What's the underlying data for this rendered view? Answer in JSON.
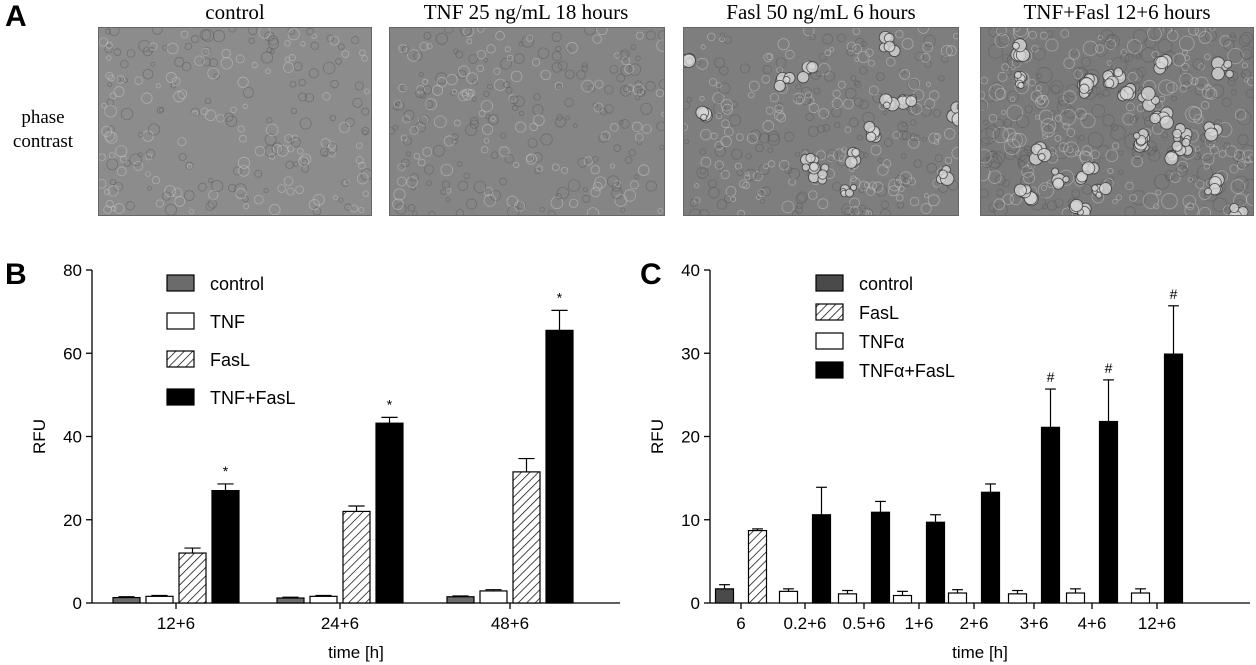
{
  "panel_letters": [
    "A",
    "B",
    "C"
  ],
  "panel_a": {
    "row_label": "phase\ncontrast",
    "images": [
      {
        "title": "control",
        "tone": "#8c8c8c",
        "cell_density": 0.35
      },
      {
        "title": "TNF 25 ng/mL 18 hours",
        "tone": "#858585",
        "cell_density": 0.45
      },
      {
        "title": "Fasl 50 ng/mL 6 hours",
        "tone": "#7e7e7e",
        "cell_density": 0.55
      },
      {
        "title": "TNF+Fasl 12+6 hours",
        "tone": "#7a7a7a",
        "cell_density": 0.85
      }
    ]
  },
  "chart_data": [
    {
      "panel": "B",
      "type": "bar",
      "xlabel": "time [h]",
      "ylabel": "RFU",
      "ylim": [
        0,
        80
      ],
      "yticks": [
        0,
        20,
        40,
        60,
        80
      ],
      "categories": [
        "12+6",
        "24+6",
        "48+6"
      ],
      "legend_position": "top-left",
      "series": [
        {
          "name": "control",
          "fill": "gray",
          "values": [
            1.3,
            1.2,
            1.5
          ],
          "errors": [
            0.2,
            0.2,
            0.2
          ]
        },
        {
          "name": "TNF",
          "fill": "white",
          "values": [
            1.6,
            1.6,
            2.9
          ],
          "errors": [
            0.2,
            0.2,
            0.3
          ]
        },
        {
          "name": "FasL",
          "fill": "hatch",
          "values": [
            12,
            22,
            31.5
          ],
          "errors": [
            1.2,
            1.3,
            3.2
          ]
        },
        {
          "name": "TNF+FasL",
          "fill": "black",
          "values": [
            27,
            43.2,
            65.5
          ],
          "errors": [
            1.6,
            1.4,
            4.8
          ]
        }
      ],
      "annotations": [
        {
          "category": "12+6",
          "series": "TNF+FasL",
          "text": "*"
        },
        {
          "category": "24+6",
          "series": "TNF+FasL",
          "text": "*"
        },
        {
          "category": "48+6",
          "series": "TNF+FasL",
          "text": "*"
        }
      ]
    },
    {
      "panel": "C",
      "type": "bar",
      "xlabel": "time [h]",
      "ylabel": "RFU",
      "ylim": [
        0,
        40
      ],
      "yticks": [
        0,
        10,
        20,
        30,
        40
      ],
      "categories": [
        "6",
        "0.2+6",
        "0.5+6",
        "1+6",
        "2+6",
        "3+6",
        "4+6",
        "12+6"
      ],
      "legend_position": "top-left",
      "legend": [
        "control",
        "FasL",
        "TNFα",
        "TNFα+FasL"
      ],
      "bars": [
        {
          "category": "6",
          "series": "control",
          "fill": "darkgray",
          "value": 1.7,
          "error": 0.5
        },
        {
          "category": "6",
          "series": "FasL",
          "fill": "hatch",
          "value": 8.7,
          "error": 0.2
        },
        {
          "category": "0.2+6",
          "series": "TNFα",
          "fill": "white",
          "value": 1.4,
          "error": 0.3
        },
        {
          "category": "0.2+6",
          "series": "TNFα+FasL",
          "fill": "black",
          "value": 10.6,
          "error": 3.3
        },
        {
          "category": "0.5+6",
          "series": "TNFα",
          "fill": "white",
          "value": 1.1,
          "error": 0.4
        },
        {
          "category": "0.5+6",
          "series": "TNFα+FasL",
          "fill": "black",
          "value": 10.9,
          "error": 1.3
        },
        {
          "category": "1+6",
          "series": "TNFα",
          "fill": "white",
          "value": 0.9,
          "error": 0.5
        },
        {
          "category": "1+6",
          "series": "TNFα+FasL",
          "fill": "black",
          "value": 9.7,
          "error": 0.9
        },
        {
          "category": "2+6",
          "series": "TNFα",
          "fill": "white",
          "value": 1.2,
          "error": 0.4
        },
        {
          "category": "2+6",
          "series": "TNFα+FasL",
          "fill": "black",
          "value": 13.3,
          "error": 1.0
        },
        {
          "category": "3+6",
          "series": "TNFα",
          "fill": "white",
          "value": 1.1,
          "error": 0.4
        },
        {
          "category": "3+6",
          "series": "TNFα+FasL",
          "fill": "black",
          "value": 21.1,
          "error": 4.6
        },
        {
          "category": "4+6",
          "series": "TNFα",
          "fill": "white",
          "value": 1.2,
          "error": 0.5
        },
        {
          "category": "4+6",
          "series": "TNFα+FasL",
          "fill": "black",
          "value": 21.8,
          "error": 5.0
        },
        {
          "category": "12+6",
          "series": "TNFα",
          "fill": "white",
          "value": 1.2,
          "error": 0.5
        },
        {
          "category": "12+6",
          "series": "TNFα+FasL",
          "fill": "black",
          "value": 29.9,
          "error": 5.8
        }
      ],
      "annotations": [
        {
          "category": "3+6",
          "series": "TNFα+FasL",
          "text": "#"
        },
        {
          "category": "4+6",
          "series": "TNFα+FasL",
          "text": "#"
        },
        {
          "category": "12+6",
          "series": "TNFα+FasL",
          "text": "#"
        }
      ]
    }
  ]
}
